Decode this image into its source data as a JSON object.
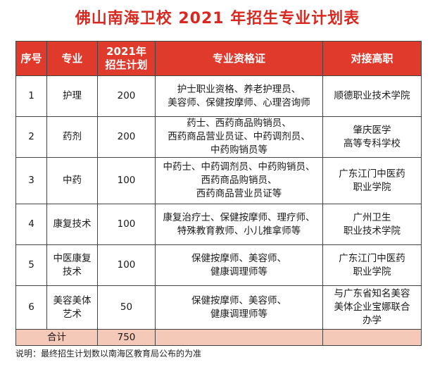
{
  "title": "佛山南海卫校 2021 年招生专业计划表",
  "table": {
    "headers": {
      "no": "序号",
      "major": "专业",
      "plan": [
        "2021年",
        "招生计划"
      ],
      "cert": "专业资格证",
      "college": "对接高职"
    },
    "rows": [
      {
        "no": "1",
        "major": [
          "护理"
        ],
        "plan": "200",
        "cert": [
          "护士职业资格、养老护理员、",
          "美容师、保健按摩师、心理咨询师"
        ],
        "college": [
          "顺德职业技术学院"
        ]
      },
      {
        "no": "2",
        "major": [
          "药剂"
        ],
        "plan": "200",
        "cert": [
          "药士、西药商品购销员、",
          "西药商品营业员证、中药调剂员、",
          "中药购销员等"
        ],
        "college": [
          "肇庆医学",
          "高等专科学校"
        ]
      },
      {
        "no": "3",
        "major": [
          "中药"
        ],
        "plan": "100",
        "cert": [
          "中药士、中药调剂员、中药购销员、",
          "西药商品购销员、",
          "西药商品营业员证等"
        ],
        "college": [
          "广东江门中医药",
          "职业学院"
        ]
      },
      {
        "no": "4",
        "major": [
          "康复技术"
        ],
        "plan": "100",
        "cert": [
          "康复治疗士、保健按摩师、理疗师、",
          "特殊教育教师、小儿推拿师等"
        ],
        "college": [
          "广州卫生",
          "职业技术学院"
        ]
      },
      {
        "no": "5",
        "major": [
          "中医康复",
          "技术"
        ],
        "plan": "100",
        "cert": [
          "保健按摩师、美容师、",
          "健康调理师等"
        ],
        "college": [
          "广东江门中医药",
          "职业学院"
        ]
      },
      {
        "no": "6",
        "major": [
          "美容美体",
          "艺术"
        ],
        "plan": "50",
        "cert": [
          "保健按摩师、美容师、",
          "健康调理师等"
        ],
        "college": [
          "与广东省知名美容",
          "美体企业宝娜联合",
          "办学"
        ]
      }
    ],
    "total": {
      "label": "合计",
      "value": "750"
    }
  },
  "note": "说明：最终招生计划数以南海区教育局公布的为准",
  "colors": {
    "title": "#d8281f",
    "header_bg": "#e03a2c",
    "total_bg": "#f4c9b8"
  }
}
